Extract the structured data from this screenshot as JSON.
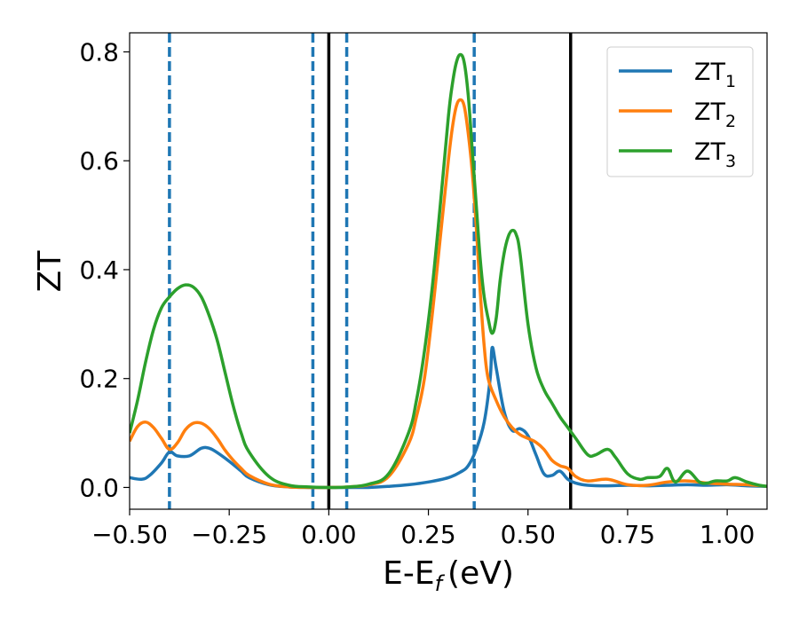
{
  "chart_data": {
    "type": "line",
    "xlabel": "E-E_f (eV)",
    "xlabel_main": "E-E",
    "xlabel_sub": "f",
    "xlabel_unit": "(eV)",
    "ylabel": "ZT",
    "xlim": [
      -0.5,
      1.1
    ],
    "ylim": [
      -0.04,
      0.835
    ],
    "x_ticks": [
      -0.5,
      -0.25,
      0.0,
      0.25,
      0.5,
      0.75,
      1.0
    ],
    "x_tick_labels": [
      "−0.50",
      "−0.25",
      "0.00",
      "0.25",
      "0.50",
      "0.75",
      "1.00"
    ],
    "y_ticks": [
      0.0,
      0.2,
      0.4,
      0.6,
      0.8
    ],
    "y_tick_labels": [
      "0.0",
      "0.2",
      "0.4",
      "0.6",
      "0.8"
    ],
    "grid": false,
    "legend_position": "top-right",
    "dashed_vlines": [
      -0.4,
      -0.04,
      0.045,
      0.365
    ],
    "solid_vlines": [
      0.0,
      0.607
    ],
    "vline_dashed_color": "#1f77b4",
    "vline_solid_color": "#000000",
    "series": [
      {
        "name": "ZT1",
        "label_main": "ZT",
        "label_sub": "1",
        "color": "#1f77b4",
        "x": [
          -0.5,
          -0.47,
          -0.45,
          -0.42,
          -0.4,
          -0.38,
          -0.35,
          -0.32,
          -0.3,
          -0.28,
          -0.25,
          -0.22,
          -0.2,
          -0.15,
          -0.1,
          -0.05,
          0.0,
          0.05,
          0.1,
          0.15,
          0.2,
          0.25,
          0.3,
          0.33,
          0.35,
          0.37,
          0.39,
          0.405,
          0.41,
          0.42,
          0.44,
          0.46,
          0.48,
          0.5,
          0.52,
          0.54,
          0.56,
          0.58,
          0.6,
          0.62,
          0.65,
          0.7,
          0.75,
          0.8,
          0.85,
          0.9,
          0.95,
          1.0,
          1.05,
          1.1
        ],
        "y": [
          0.018,
          0.015,
          0.022,
          0.045,
          0.065,
          0.058,
          0.058,
          0.072,
          0.072,
          0.064,
          0.048,
          0.03,
          0.018,
          0.005,
          0.001,
          0.0,
          0.0,
          0.0,
          0.0,
          0.002,
          0.005,
          0.01,
          0.018,
          0.028,
          0.04,
          0.07,
          0.12,
          0.2,
          0.257,
          0.22,
          0.14,
          0.105,
          0.108,
          0.095,
          0.06,
          0.025,
          0.022,
          0.03,
          0.015,
          0.008,
          0.004,
          0.003,
          0.004,
          0.003,
          0.004,
          0.005,
          0.004,
          0.005,
          0.003,
          0.002
        ]
      },
      {
        "name": "ZT2",
        "label_main": "ZT",
        "label_sub": "2",
        "color": "#ff7f0e",
        "x": [
          -0.5,
          -0.48,
          -0.46,
          -0.44,
          -0.42,
          -0.4,
          -0.38,
          -0.36,
          -0.34,
          -0.32,
          -0.3,
          -0.28,
          -0.26,
          -0.24,
          -0.22,
          -0.2,
          -0.15,
          -0.1,
          -0.05,
          0.0,
          0.05,
          0.1,
          0.15,
          0.2,
          0.22,
          0.24,
          0.26,
          0.28,
          0.3,
          0.31,
          0.32,
          0.33,
          0.34,
          0.35,
          0.36,
          0.37,
          0.38,
          0.39,
          0.4,
          0.42,
          0.44,
          0.46,
          0.48,
          0.5,
          0.52,
          0.54,
          0.56,
          0.58,
          0.6,
          0.62,
          0.65,
          0.7,
          0.75,
          0.8,
          0.85,
          0.9,
          0.95,
          1.0,
          1.05,
          1.1
        ],
        "y": [
          0.085,
          0.112,
          0.12,
          0.11,
          0.09,
          0.07,
          0.082,
          0.106,
          0.118,
          0.118,
          0.108,
          0.09,
          0.068,
          0.05,
          0.035,
          0.022,
          0.006,
          0.001,
          0.0,
          0.0,
          0.001,
          0.005,
          0.02,
          0.08,
          0.13,
          0.2,
          0.32,
          0.46,
          0.6,
          0.66,
          0.7,
          0.712,
          0.7,
          0.65,
          0.58,
          0.48,
          0.36,
          0.26,
          0.2,
          0.16,
          0.13,
          0.11,
          0.097,
          0.09,
          0.083,
          0.07,
          0.05,
          0.04,
          0.035,
          0.02,
          0.012,
          0.015,
          0.005,
          0.004,
          0.01,
          0.012,
          0.008,
          0.006,
          0.005,
          0.002
        ]
      },
      {
        "name": "ZT3",
        "label_main": "ZT",
        "label_sub": "3",
        "color": "#2ca02c",
        "x": [
          -0.5,
          -0.48,
          -0.46,
          -0.44,
          -0.42,
          -0.4,
          -0.38,
          -0.36,
          -0.34,
          -0.32,
          -0.3,
          -0.28,
          -0.26,
          -0.24,
          -0.22,
          -0.2,
          -0.15,
          -0.1,
          -0.05,
          0.0,
          0.05,
          0.1,
          0.15,
          0.2,
          0.22,
          0.24,
          0.26,
          0.28,
          0.3,
          0.31,
          0.32,
          0.33,
          0.34,
          0.35,
          0.36,
          0.37,
          0.38,
          0.39,
          0.4,
          0.41,
          0.42,
          0.43,
          0.44,
          0.45,
          0.46,
          0.47,
          0.48,
          0.5,
          0.52,
          0.54,
          0.56,
          0.58,
          0.6,
          0.62,
          0.65,
          0.67,
          0.7,
          0.72,
          0.75,
          0.78,
          0.8,
          0.83,
          0.85,
          0.87,
          0.9,
          0.93,
          0.95,
          0.97,
          1.0,
          1.02,
          1.05,
          1.08,
          1.1
        ],
        "y": [
          0.1,
          0.16,
          0.23,
          0.29,
          0.33,
          0.35,
          0.365,
          0.372,
          0.368,
          0.35,
          0.315,
          0.27,
          0.21,
          0.15,
          0.1,
          0.065,
          0.02,
          0.004,
          0.001,
          0.0,
          0.001,
          0.006,
          0.025,
          0.1,
          0.16,
          0.25,
          0.37,
          0.52,
          0.68,
          0.74,
          0.78,
          0.795,
          0.78,
          0.72,
          0.62,
          0.52,
          0.42,
          0.35,
          0.31,
          0.283,
          0.31,
          0.38,
          0.43,
          0.46,
          0.472,
          0.465,
          0.43,
          0.3,
          0.22,
          0.18,
          0.155,
          0.13,
          0.11,
          0.09,
          0.06,
          0.06,
          0.07,
          0.055,
          0.025,
          0.015,
          0.018,
          0.02,
          0.035,
          0.01,
          0.03,
          0.01,
          0.008,
          0.012,
          0.012,
          0.018,
          0.01,
          0.004,
          0.002
        ]
      }
    ]
  }
}
